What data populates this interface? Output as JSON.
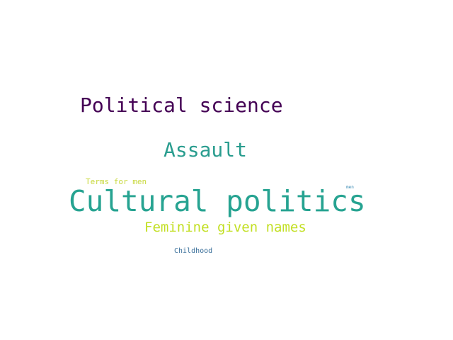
{
  "words": [
    {
      "text": "Political science",
      "color": "#440154"
    },
    {
      "text": "Assault",
      "color": "#2a9d8f"
    },
    {
      "text": "Terms for men",
      "color": "#c8d83c"
    },
    {
      "text": "men",
      "color": "#3b8bb5"
    },
    {
      "text": "Cultural politics",
      "color": "#26a391"
    },
    {
      "text": "Feminine given names",
      "color": "#c2df23"
    },
    {
      "text": "Childhood",
      "color": "#3a6f9a"
    }
  ]
}
